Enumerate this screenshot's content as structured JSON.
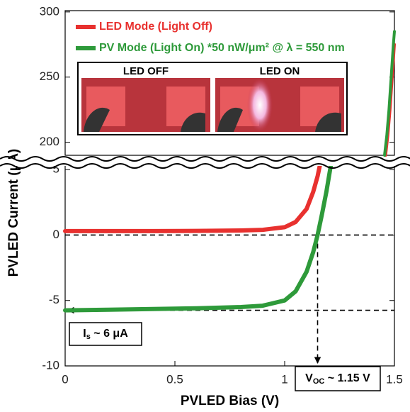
{
  "chart_data": [
    {
      "type": "line",
      "ylabel": "PVLED Current (μA)",
      "ylim": [
        190,
        301
      ],
      "yticks": [
        200,
        250,
        300
      ],
      "xlim": [
        0,
        1.5
      ],
      "inset_labels": [
        "LED OFF",
        "LED ON"
      ],
      "series": [
        {
          "name": "LED Mode (Light Off)",
          "color": "#e8312f",
          "x": [
            1.46,
            1.47,
            1.48,
            1.49,
            1.5
          ],
          "values": [
            190,
            205,
            225,
            250,
            275
          ]
        },
        {
          "name": "PV Mode (Light On) *50 nW/μm² @ λ = 550 nm",
          "color": "#2e9a3a",
          "x": [
            1.455,
            1.465,
            1.475,
            1.485,
            1.495,
            1.5
          ],
          "values": [
            190,
            205,
            225,
            250,
            275,
            285
          ]
        }
      ]
    },
    {
      "type": "line",
      "xlabel": "PVLED Bias (V)",
      "xlim": [
        0,
        1.5
      ],
      "xticks": [
        0,
        0.5,
        1,
        1.5
      ],
      "ylim": [
        -10,
        5.5
      ],
      "yticks": [
        -10,
        -5,
        0,
        5
      ],
      "hlines": [
        0,
        -5.75
      ],
      "vline": 1.15,
      "annotations": [
        {
          "parts": [
            "I",
            "s",
            " ~ 6 μA"
          ]
        },
        {
          "parts": [
            "V",
            "OC",
            " ~ 1.15 V"
          ]
        }
      ],
      "series": [
        {
          "color": "#e8312f",
          "x": [
            0,
            0.2,
            0.4,
            0.6,
            0.8,
            0.9,
            1.0,
            1.05,
            1.1,
            1.13,
            1.15,
            1.16
          ],
          "values": [
            0.3,
            0.3,
            0.3,
            0.32,
            0.35,
            0.4,
            0.6,
            1.0,
            2.0,
            3.3,
            4.5,
            5.3
          ]
        },
        {
          "color": "#2e9a3a",
          "x": [
            0,
            0.2,
            0.4,
            0.6,
            0.8,
            0.9,
            1.0,
            1.05,
            1.1,
            1.13,
            1.15,
            1.17,
            1.19,
            1.21
          ],
          "values": [
            -5.75,
            -5.7,
            -5.65,
            -5.6,
            -5.5,
            -5.4,
            -5.0,
            -4.3,
            -2.8,
            -1.3,
            0,
            1.6,
            3.3,
            5.3
          ]
        }
      ]
    }
  ]
}
